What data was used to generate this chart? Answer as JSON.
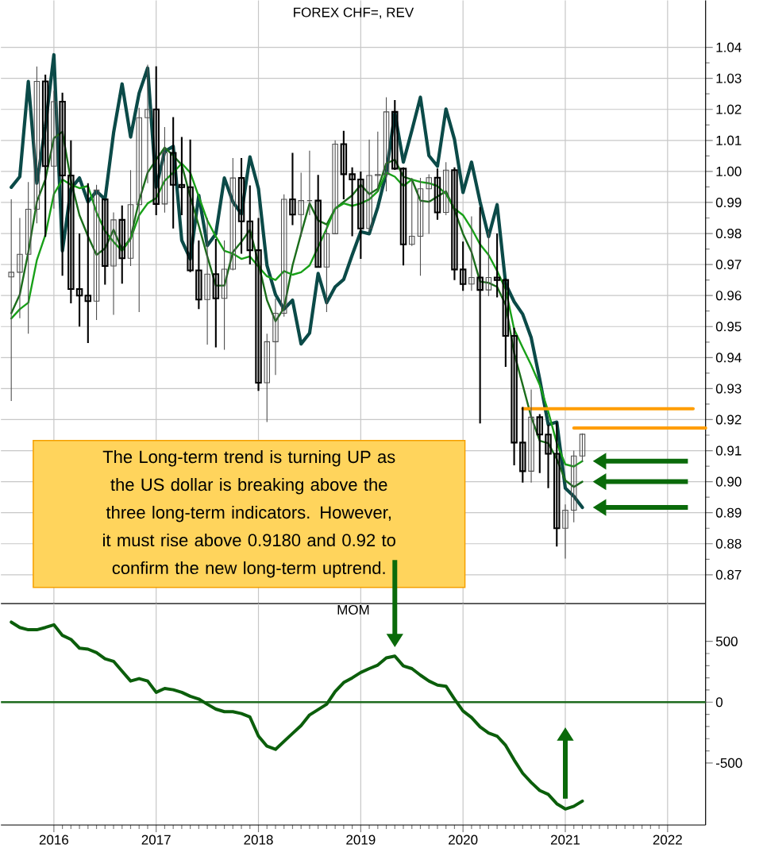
{
  "chart_data": [
    {
      "type": "candlestick",
      "title": "FOREX CHF=, REV",
      "x": [
        "2015-08",
        "2015-09",
        "2015-10",
        "2015-11",
        "2015-12",
        "2016-01",
        "2016-02",
        "2016-03",
        "2016-04",
        "2016-05",
        "2016-06",
        "2016-07",
        "2016-08",
        "2016-09",
        "2016-10",
        "2016-11",
        "2016-12",
        "2017-01",
        "2017-02",
        "2017-03",
        "2017-04",
        "2017-05",
        "2017-06",
        "2017-07",
        "2017-08",
        "2017-09",
        "2017-10",
        "2017-11",
        "2017-12",
        "2018-01",
        "2018-02",
        "2018-03",
        "2018-04",
        "2018-05",
        "2018-06",
        "2018-07",
        "2018-08",
        "2018-09",
        "2018-10",
        "2018-11",
        "2018-12",
        "2019-01",
        "2019-02",
        "2019-03",
        "2019-04",
        "2019-05",
        "2019-06",
        "2019-07",
        "2019-08",
        "2019-09",
        "2019-10",
        "2019-11",
        "2019-12",
        "2020-01",
        "2020-02",
        "2020-03",
        "2020-04",
        "2020-05",
        "2020-06",
        "2020-07",
        "2020-08",
        "2020-09",
        "2020-10",
        "2020-11",
        "2020-12",
        "2021-01",
        "2021-02",
        "2021-03"
      ],
      "ohlc": [
        [
          0.966,
          0.991,
          0.926,
          0.9675
        ],
        [
          0.9675,
          0.985,
          0.9527,
          0.9733
        ],
        [
          0.9733,
          0.9966,
          0.9477,
          0.9878
        ],
        [
          0.9878,
          1.0338,
          0.9833,
          1.029
        ],
        [
          1.029,
          1.0312,
          0.9789,
          1.0017
        ],
        [
          1.0017,
          1.026,
          0.988,
          1.0225
        ],
        [
          1.0225,
          1.0254,
          0.9664,
          0.9987
        ],
        [
          0.9987,
          1.01,
          0.9575,
          0.9621
        ],
        [
          0.9621,
          0.98,
          0.95,
          0.96
        ],
        [
          0.96,
          0.9962,
          0.9447,
          0.9582
        ],
        [
          0.9582,
          0.9957,
          0.9521,
          0.994
        ],
        [
          0.991,
          0.991,
          0.9635,
          0.9695
        ],
        [
          0.9695,
          0.9868,
          0.9538,
          0.9844
        ],
        [
          0.9844,
          0.989,
          0.9638,
          0.972
        ],
        [
          0.972,
          1.0004,
          0.9695,
          0.9893
        ],
        [
          0.9893,
          1.0205,
          0.9547,
          1.0173
        ],
        [
          1.0173,
          1.0344,
          0.9962,
          1.02
        ],
        [
          1.02,
          1.0339,
          0.9859,
          0.9895
        ],
        [
          0.9895,
          1.0143,
          0.9867,
          1.006
        ],
        [
          1.006,
          1.0175,
          0.9816,
          0.9957
        ],
        [
          0.9957,
          1.0111,
          0.9859,
          0.9949
        ],
        [
          0.9949,
          1.0103,
          0.9675,
          0.9681
        ],
        [
          0.9681,
          0.9778,
          0.9556,
          0.9587
        ],
        [
          0.9587,
          0.985,
          0.9442,
          0.9669
        ],
        [
          0.9669,
          0.9782,
          0.9433,
          0.9591
        ],
        [
          0.9591,
          0.9778,
          0.9425,
          0.9685
        ],
        [
          0.9685,
          1.0043,
          0.9681,
          0.9979
        ],
        [
          0.9979,
          1.0043,
          0.9735,
          0.9839
        ],
        [
          0.9839,
          0.9955,
          0.97,
          0.9746
        ],
        [
          0.9746,
          0.985,
          0.9293,
          0.9319
        ],
        [
          0.9319,
          0.9477,
          0.9192,
          0.9451
        ],
        [
          0.9451,
          0.959,
          0.9344,
          0.9543
        ],
        [
          0.9543,
          0.9926,
          0.9532,
          0.991
        ],
        [
          0.991,
          1.006,
          0.9827,
          0.9861
        ],
        [
          0.9861,
          0.9996,
          0.979,
          0.9906
        ],
        [
          0.9906,
          1.0067,
          0.9859,
          0.9906
        ],
        [
          0.9906,
          0.9989,
          0.9692,
          0.9692
        ],
        [
          0.9692,
          0.9825,
          0.9547,
          0.9799
        ],
        [
          0.9799,
          1.01,
          0.9799,
          1.0088
        ],
        [
          1.0088,
          1.0131,
          0.991,
          0.9991
        ],
        [
          0.9991,
          1.0013,
          0.9791,
          0.9974
        ],
        [
          0.9974,
          1.0,
          0.9718,
          0.9816
        ],
        [
          0.9816,
          1.0103,
          0.9805,
          0.9987
        ],
        [
          0.9987,
          1.0128,
          0.9936,
          0.999
        ],
        [
          0.999,
          1.0239,
          0.9936,
          1.0192
        ],
        [
          1.0192,
          1.023,
          1.0005,
          1.0009
        ],
        [
          1.0009,
          1.0013,
          0.9697,
          0.9765
        ],
        [
          0.9765,
          0.9979,
          0.976,
          0.9791
        ],
        [
          0.9791,
          0.9979,
          0.9664,
          0.9944
        ],
        [
          0.9944,
          0.9991,
          0.9799,
          0.998
        ],
        [
          0.998,
          1.0009,
          0.9844,
          0.9868
        ],
        [
          0.9868,
          1.003,
          0.9859,
          1.0004
        ],
        [
          1.0004,
          1.0013,
          0.965,
          0.9684
        ],
        [
          0.9684,
          0.9774,
          0.9615,
          0.9637
        ],
        [
          0.9637,
          0.9855,
          0.9615,
          0.9658
        ],
        [
          0.9658,
          0.9885,
          0.9188,
          0.9618
        ],
        [
          0.9618,
          0.9808,
          0.9598,
          0.9658
        ],
        [
          0.9658,
          0.98,
          0.9594,
          0.965
        ],
        [
          0.965,
          0.9655,
          0.937,
          0.947
        ],
        [
          0.947,
          0.9496,
          0.9053,
          0.9126
        ],
        [
          0.9126,
          0.9241,
          0.8997,
          0.9034
        ],
        [
          0.9034,
          0.9297,
          0.8997,
          0.9208
        ],
        [
          0.9208,
          0.9218,
          0.9028,
          0.9152
        ],
        [
          0.9152,
          0.9184,
          0.8979,
          0.909
        ],
        [
          0.909,
          0.9192,
          0.8791,
          0.885
        ],
        [
          0.885,
          0.8927,
          0.8752,
          0.8908
        ],
        [
          0.8908,
          0.91,
          0.8869,
          0.9083
        ],
        [
          0.9083,
          0.9156,
          0.9064,
          0.9153
        ]
      ],
      "series": [
        {
          "type": "line",
          "color": "#0b4a48",
          "values": [
            0.9949,
            0.9983,
            1.029,
            0.9962,
            1.0145,
            1.0376,
            0.9744,
            0.9944,
            0.9979,
            0.9902,
            0.9936,
            0.991,
            1.0124,
            1.0282,
            1.0111,
            1.0252,
            1.0333,
            0.9949,
            1.0064,
            1.0081,
            0.9778,
            0.9718,
            0.9923,
            0.9761,
            0.9799,
            0.9979,
            0.9902,
            0.9863,
            1.0047,
            0.9944,
            0.9697,
            0.9603,
            0.9556,
            0.9585,
            0.9444,
            0.9479,
            0.9671,
            0.9577,
            0.9628,
            0.9652,
            0.9731,
            0.9806,
            0.9799,
            0.9885,
            0.9996,
            1.0188,
            1.003,
            1.0132,
            1.0239,
            1.0051,
            1.0017,
            1.0201,
            1.0103,
            0.9932,
            1.003,
            0.9902,
            0.979,
            0.9893,
            0.9638,
            0.958,
            0.954,
            0.9464,
            0.933,
            0.9184,
            0.9192,
            0.8979,
            0.8953,
            0.8917
          ]
        },
        {
          "type": "line",
          "color": "#1b6d1b",
          "values": [
            0.9543,
            0.9603,
            0.974,
            0.9902,
            0.9974,
            1.0107,
            1.0128,
            0.997,
            0.9859,
            0.9791,
            0.9731,
            0.9752,
            0.9812,
            0.9748,
            0.9786,
            0.9906,
            0.9996,
            1.0038,
            1.0077,
            1.0051,
            1.0021,
            0.9919,
            0.9825,
            0.9726,
            0.9632,
            0.9632,
            0.974,
            0.9773,
            0.9812,
            0.9705,
            0.9585,
            0.9517,
            0.956,
            0.9697,
            0.9799,
            0.9897,
            0.9842,
            0.9829,
            0.988,
            0.9902,
            0.9923,
            0.9957,
            0.9927,
            0.9944,
            1.0026,
            1.0038,
            0.9983,
            0.9974,
            0.9906,
            0.9902,
            0.9919,
            0.9936,
            0.9876,
            0.9799,
            0.974,
            0.9645,
            0.9641,
            0.9628,
            0.957,
            0.9415,
            0.9312,
            0.9209,
            0.9132,
            0.9124,
            0.9073,
            0.9004,
            0.8983,
            0.9
          ]
        },
        {
          "type": "line",
          "color": "#18a018",
          "values": [
            0.9526,
            0.9556,
            0.9577,
            0.9714,
            0.9795,
            0.9927,
            0.9974,
            0.9957,
            0.9946,
            0.9953,
            0.9868,
            0.9808,
            0.9773,
            0.9744,
            0.9782,
            0.9859,
            0.9897,
            0.9914,
            0.997,
            0.9996,
            1.0026,
            0.9996,
            0.9919,
            0.9842,
            0.979,
            0.9744,
            0.9735,
            0.9718,
            0.9726,
            0.9693,
            0.9662,
            0.965,
            0.9679,
            0.9667,
            0.9675,
            0.9697,
            0.9756,
            0.9816,
            0.988,
            0.9897,
            0.9889,
            0.9897,
            0.991,
            0.9936,
            0.9996,
            0.9983,
            0.9953,
            0.9974,
            0.9966,
            0.9962,
            0.9953,
            0.9927,
            0.988,
            0.9859,
            0.9816,
            0.9765,
            0.9731,
            0.9679,
            0.962,
            0.9491,
            0.9432,
            0.9376,
            0.9312,
            0.9226,
            0.9124,
            0.9056,
            0.9049,
            0.9066
          ]
        },
        {
          "type": "line",
          "color": "#ff9d00",
          "x": [
            "2020-08",
            "2022-04"
          ],
          "values": [
            0.9235,
            0.9235
          ]
        },
        {
          "type": "line",
          "color": "#ff9d00",
          "x": [
            "2021-02",
            "2022-05-15"
          ],
          "values": [
            0.9173,
            0.9173
          ]
        }
      ],
      "annotations": [
        "The Long-term trend is turning UP as the US dollar is breaking above the three long-term indicators. However, it must rise above 0.9180 and 0.92 to confirm the new long-term uptrend."
      ],
      "xlim": [
        "2015-06-25",
        "2022-05-15"
      ],
      "ylim": [
        0.8607,
        1.0551
      ],
      "xticks": [
        "2016",
        "2017",
        "2018",
        "2019",
        "2020",
        "2021",
        "2022"
      ],
      "yticks": [
        0.87,
        0.88,
        0.89,
        {
          "value": 0.9,
          "label": "0.90"
        },
        0.91,
        0.92,
        0.93,
        0.94,
        0.95,
        0.96,
        0.97,
        0.98,
        0.99,
        {
          "value": 1.0,
          "label": "1.00"
        },
        1.01,
        1.02,
        1.03,
        1.04
      ],
      "grid": true,
      "tick_labels": "y"
    },
    {
      "type": "line",
      "title": "MOM",
      "x": [
        "2015-08",
        "2015-09",
        "2015-10",
        "2015-11",
        "2015-12",
        "2016-01",
        "2016-02",
        "2016-03",
        "2016-04",
        "2016-05",
        "2016-06",
        "2016-07",
        "2016-08",
        "2016-09",
        "2016-10",
        "2016-11",
        "2016-12",
        "2017-01",
        "2017-02",
        "2017-03",
        "2017-04",
        "2017-05",
        "2017-06",
        "2017-07",
        "2017-08",
        "2017-09",
        "2017-10",
        "2017-11",
        "2017-12",
        "2018-01",
        "2018-02",
        "2018-03",
        "2018-04",
        "2018-05",
        "2018-06",
        "2018-07",
        "2018-08",
        "2018-09",
        "2018-10",
        "2018-11",
        "2018-12",
        "2019-01",
        "2019-02",
        "2019-03",
        "2019-04",
        "2019-05",
        "2019-06",
        "2019-07",
        "2019-08",
        "2019-09",
        "2019-10",
        "2019-11",
        "2019-12",
        "2020-01",
        "2020-02",
        "2020-03",
        "2020-04",
        "2020-05",
        "2020-06",
        "2020-07",
        "2020-08",
        "2020-09",
        "2020-10",
        "2020-11",
        "2020-12",
        "2021-01",
        "2021-02",
        "2021-03"
      ],
      "values": [
        658,
        614,
        595,
        595,
        614,
        636,
        549,
        516,
        444,
        436,
        407,
        357,
        336,
        255,
        174,
        194,
        174,
        81,
        113,
        102,
        81,
        48,
        26,
        -17,
        -57,
        -78,
        -78,
        -94,
        -122,
        -279,
        -362,
        -388,
        -322,
        -257,
        -192,
        -105,
        -61,
        -17,
        87,
        161,
        200,
        244,
        276,
        305,
        364,
        379,
        298,
        276,
        222,
        174,
        140,
        131,
        26,
        -72,
        -126,
        -203,
        -253,
        -279,
        -355,
        -475,
        -584,
        -660,
        -726,
        -758,
        -835,
        -878,
        -856,
        -813
      ],
      "color": "#0b5e0b",
      "ref_lines": [
        {
          "axis": "y",
          "value": 0,
          "color": "#1e6b1e"
        }
      ],
      "xlim": [
        "2015-06-25",
        "2022-05-15"
      ],
      "ylim": [
        -1010,
        810
      ],
      "xticks": [
        "2016",
        "2017",
        "2018",
        "2019",
        "2020",
        "2021",
        "2022"
      ],
      "yticks": [
        -500,
        0,
        500
      ],
      "grid": "x"
    }
  ]
}
